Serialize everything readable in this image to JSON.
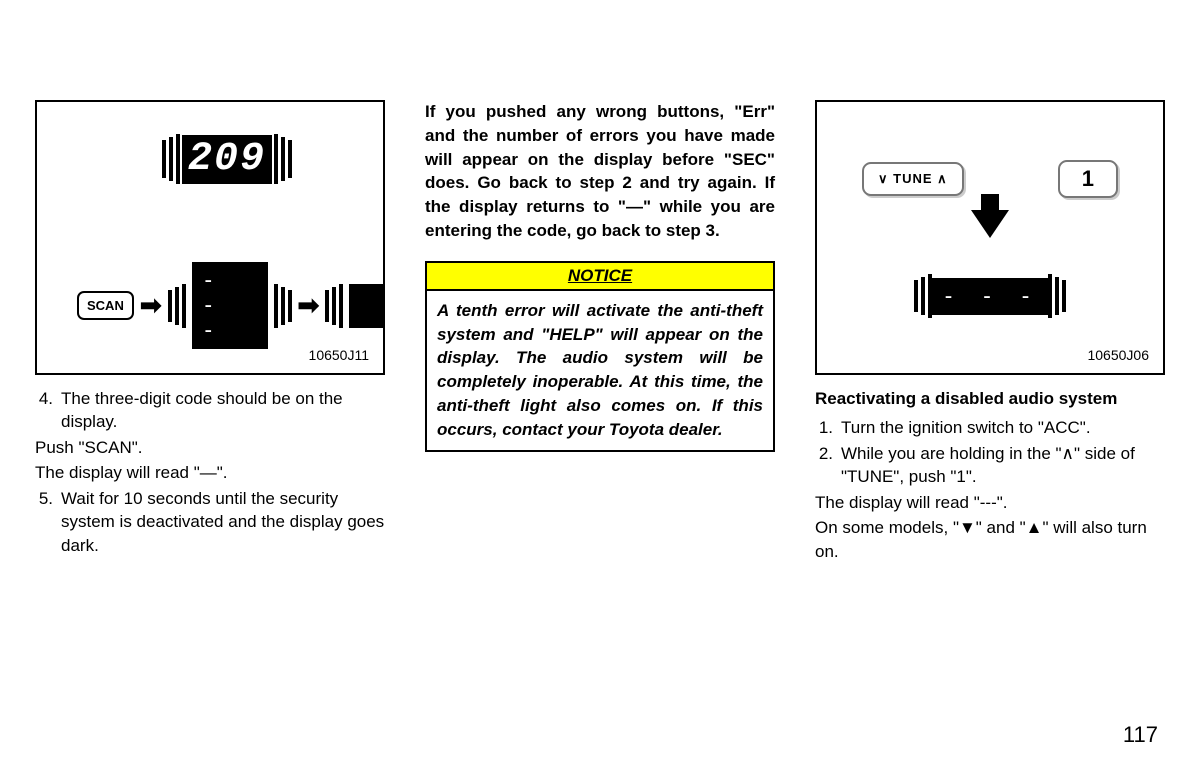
{
  "page_number": "117",
  "colors": {
    "text": "#000000",
    "background": "#ffffff",
    "notice_header_bg": "#ffff00",
    "border": "#000000"
  },
  "column1": {
    "figure": {
      "id": "10650J11",
      "display_value": "209",
      "scan_label": "SCAN",
      "dashes": "- - -"
    },
    "steps": [
      {
        "num": "4.",
        "text": "The three-digit code should be on the display."
      }
    ],
    "after4_line1": "Push \"SCAN\".",
    "after4_line2": "The display will read \"—\".",
    "step5": {
      "num": "5.",
      "text": "Wait for 10 seconds until the security system is deactivated and the display goes dark."
    }
  },
  "column2": {
    "intro": "If you pushed any wrong buttons, \"Err\" and the number of errors you have made will appear on the display before \"SEC\" does. Go back to step 2 and try again. If the display returns to \"—\" while you are entering the code, go back to step 3.",
    "notice": {
      "header": "NOTICE",
      "body": "A tenth error will activate the anti-theft system and \"HELP\" will appear on the display. The audio system will be completely inoperable. At this time, the anti-theft light also comes on. If this occurs, contact your Toyota dealer."
    }
  },
  "column3": {
    "figure": {
      "id": "10650J06",
      "tune_label": "∨  TUNE  ∧",
      "one_label": "1",
      "dashes": "- - -"
    },
    "title": "Reactivating a disabled audio system",
    "steps": [
      {
        "num": "1.",
        "text": "Turn the ignition switch to \"ACC\"."
      },
      {
        "num": "2.",
        "text": "While you are holding in the \"∧\" side of \"TUNE\", push \"1\"."
      }
    ],
    "after_line1": "The display will read \"---\".",
    "after_line2": "On some models, \"▼\" and \"▲\" will also turn on."
  }
}
